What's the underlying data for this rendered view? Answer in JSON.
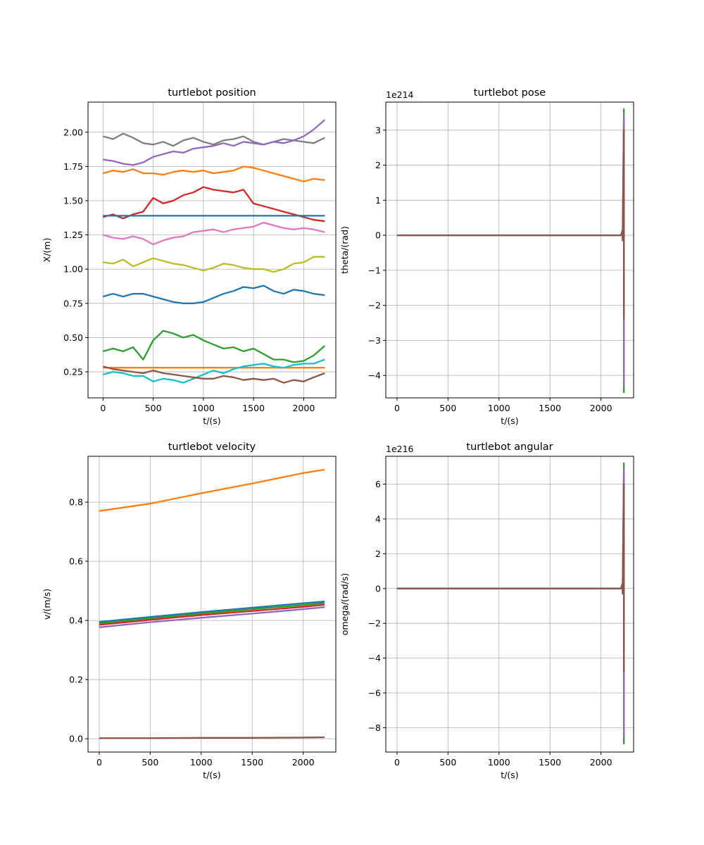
{
  "chart_data": [
    {
      "type": "line",
      "title": "turtlebot position",
      "xlabel": "t/(s)",
      "ylabel": "X/(m)",
      "xlim": [
        -150,
        2320
      ],
      "ylim": [
        0.06,
        2.22
      ],
      "xticks": [
        0,
        500,
        1000,
        1500,
        2000
      ],
      "yticks": [
        0.25,
        0.5,
        0.75,
        1.0,
        1.25,
        1.5,
        1.75,
        2.0
      ],
      "ytick_labels": [
        "0.25",
        "0.50",
        "0.75",
        "1.00",
        "1.25",
        "1.50",
        "1.75",
        "2.00"
      ],
      "grid": true,
      "x": [
        0,
        100,
        200,
        300,
        400,
        500,
        600,
        700,
        800,
        900,
        1000,
        1100,
        1200,
        1300,
        1400,
        1500,
        1600,
        1700,
        1800,
        1900,
        2000,
        2100,
        2210
      ],
      "series": [
        {
          "color": "#7f7f7f",
          "values": [
            1.97,
            1.95,
            1.99,
            1.96,
            1.92,
            1.91,
            1.93,
            1.9,
            1.94,
            1.96,
            1.93,
            1.91,
            1.94,
            1.95,
            1.97,
            1.93,
            1.91,
            1.93,
            1.95,
            1.94,
            1.93,
            1.92,
            1.96
          ]
        },
        {
          "color": "#9467bd",
          "values": [
            1.8,
            1.79,
            1.77,
            1.76,
            1.78,
            1.82,
            1.84,
            1.86,
            1.85,
            1.88,
            1.89,
            1.9,
            1.92,
            1.9,
            1.93,
            1.92,
            1.91,
            1.93,
            1.92,
            1.94,
            1.97,
            2.02,
            2.09
          ]
        },
        {
          "color": "#ff7f0e",
          "values": [
            1.7,
            1.72,
            1.71,
            1.73,
            1.7,
            1.7,
            1.69,
            1.71,
            1.72,
            1.71,
            1.72,
            1.7,
            1.71,
            1.72,
            1.75,
            1.74,
            1.72,
            1.7,
            1.68,
            1.66,
            1.64,
            1.66,
            1.65
          ]
        },
        {
          "color": "#d62728",
          "values": [
            1.38,
            1.4,
            1.37,
            1.4,
            1.42,
            1.52,
            1.48,
            1.5,
            1.54,
            1.56,
            1.6,
            1.58,
            1.57,
            1.56,
            1.58,
            1.48,
            1.46,
            1.44,
            1.42,
            1.4,
            1.38,
            1.36,
            1.35
          ]
        },
        {
          "color": "#1f77b4",
          "values": [
            1.39,
            1.39,
            1.39,
            1.39,
            1.39,
            1.39,
            1.39,
            1.39,
            1.39,
            1.39,
            1.39,
            1.39,
            1.39,
            1.39,
            1.39,
            1.39,
            1.39,
            1.39,
            1.39,
            1.39,
            1.39,
            1.39,
            1.39
          ]
        },
        {
          "color": "#e377c2",
          "values": [
            1.25,
            1.23,
            1.22,
            1.24,
            1.22,
            1.18,
            1.21,
            1.23,
            1.24,
            1.27,
            1.28,
            1.29,
            1.27,
            1.29,
            1.3,
            1.31,
            1.34,
            1.32,
            1.3,
            1.29,
            1.3,
            1.29,
            1.27
          ]
        },
        {
          "color": "#bcbd22",
          "values": [
            1.05,
            1.04,
            1.07,
            1.02,
            1.05,
            1.08,
            1.06,
            1.04,
            1.03,
            1.01,
            0.99,
            1.01,
            1.04,
            1.03,
            1.01,
            1.0,
            1.0,
            0.98,
            1.0,
            1.04,
            1.05,
            1.09,
            1.09
          ]
        },
        {
          "color": "#1f77b4",
          "values": [
            0.8,
            0.82,
            0.8,
            0.82,
            0.82,
            0.8,
            0.78,
            0.76,
            0.75,
            0.75,
            0.76,
            0.79,
            0.82,
            0.84,
            0.87,
            0.86,
            0.88,
            0.84,
            0.82,
            0.85,
            0.84,
            0.82,
            0.81
          ]
        },
        {
          "color": "#2ca02c",
          "values": [
            0.4,
            0.42,
            0.4,
            0.43,
            0.34,
            0.48,
            0.55,
            0.53,
            0.5,
            0.52,
            0.48,
            0.45,
            0.42,
            0.43,
            0.4,
            0.42,
            0.38,
            0.34,
            0.34,
            0.32,
            0.33,
            0.37,
            0.44
          ]
        },
        {
          "color": "#ff7f0e",
          "values": [
            0.28,
            0.28,
            0.28,
            0.28,
            0.28,
            0.28,
            0.28,
            0.28,
            0.28,
            0.28,
            0.28,
            0.28,
            0.28,
            0.28,
            0.28,
            0.28,
            0.28,
            0.28,
            0.28,
            0.28,
            0.28,
            0.28,
            0.28
          ]
        },
        {
          "color": "#17becf",
          "values": [
            0.23,
            0.25,
            0.24,
            0.22,
            0.22,
            0.18,
            0.2,
            0.19,
            0.17,
            0.2,
            0.23,
            0.26,
            0.24,
            0.27,
            0.29,
            0.3,
            0.31,
            0.29,
            0.28,
            0.3,
            0.31,
            0.31,
            0.34
          ]
        },
        {
          "color": "#8c564b",
          "values": [
            0.29,
            0.27,
            0.26,
            0.25,
            0.24,
            0.26,
            0.24,
            0.23,
            0.22,
            0.21,
            0.2,
            0.2,
            0.22,
            0.21,
            0.19,
            0.2,
            0.19,
            0.2,
            0.17,
            0.19,
            0.18,
            0.21,
            0.24
          ]
        }
      ]
    },
    {
      "type": "line",
      "title": "turtlebot pose",
      "xlabel": "t/(s)",
      "ylabel": "theta/(rad)",
      "offset_text": "1e214",
      "xlim": [
        -110,
        2320
      ],
      "ylim": [
        -4.64,
        3.8
      ],
      "xticks": [
        0,
        500,
        1000,
        1500,
        2000
      ],
      "yticks": [
        -4,
        -3,
        -2,
        -1,
        0,
        1,
        2,
        3
      ],
      "ytick_labels": [
        "−4",
        "−3",
        "−2",
        "−1",
        "0",
        "1",
        "2",
        "3"
      ],
      "grid": true,
      "series": [
        {
          "color": "#2ca02c",
          "x": [
            0,
            2195,
            2212,
            2212,
            2225,
            2225
          ],
          "values": [
            0,
            0,
            0.1,
            -0.1,
            3.6,
            -4.5
          ]
        },
        {
          "color": "#9467bd",
          "x": [
            0,
            2195,
            2212,
            2212,
            2225,
            2225
          ],
          "values": [
            0,
            0,
            0.1,
            -0.1,
            3.45,
            -4.3
          ]
        },
        {
          "color": "#8c564b",
          "x": [
            0,
            2195,
            2212,
            2212,
            2225,
            2225
          ],
          "values": [
            0,
            0,
            0.15,
            -0.15,
            3.0,
            -2.4
          ]
        }
      ]
    },
    {
      "type": "line",
      "title": "turtlebot velocity",
      "xlabel": "t/(s)",
      "ylabel": "v/(m/s)",
      "xlim": [
        -110,
        2320
      ],
      "ylim": [
        -0.045,
        0.955
      ],
      "xticks": [
        0,
        500,
        1000,
        1500,
        2000
      ],
      "yticks": [
        0.0,
        0.2,
        0.4,
        0.6,
        0.8
      ],
      "ytick_labels": [
        "0.0",
        "0.2",
        "0.4",
        "0.6",
        "0.8"
      ],
      "grid": true,
      "x": [
        0,
        500,
        1000,
        1500,
        2000,
        2210
      ],
      "series": [
        {
          "color": "#ff7f0e",
          "values": [
            0.77,
            0.795,
            0.83,
            0.863,
            0.898,
            0.91
          ]
        },
        {
          "color": "#1f77b4",
          "values": [
            0.395,
            0.412,
            0.428,
            0.443,
            0.458,
            0.464
          ]
        },
        {
          "color": "#2ca02c",
          "values": [
            0.39,
            0.407,
            0.423,
            0.438,
            0.452,
            0.459
          ]
        },
        {
          "color": "#d62728",
          "values": [
            0.385,
            0.402,
            0.418,
            0.432,
            0.446,
            0.453
          ]
        },
        {
          "color": "#9467bd",
          "values": [
            0.377,
            0.394,
            0.409,
            0.423,
            0.438,
            0.445
          ]
        },
        {
          "color": "#8c564b",
          "values": [
            0.002,
            0.002,
            0.003,
            0.003,
            0.004,
            0.005
          ]
        }
      ]
    },
    {
      "type": "line",
      "title": "turtlebot angular",
      "xlabel": "t/(s)",
      "ylabel": "omega/(rad/s)",
      "offset_text": "1e216",
      "xlim": [
        -110,
        2320
      ],
      "ylim": [
        -9.4,
        7.6
      ],
      "xticks": [
        0,
        500,
        1000,
        1500,
        2000
      ],
      "yticks": [
        -8,
        -6,
        -4,
        -2,
        0,
        2,
        4,
        6
      ],
      "ytick_labels": [
        "−8",
        "−6",
        "−4",
        "−2",
        "0",
        "2",
        "4",
        "6"
      ],
      "grid": true,
      "series": [
        {
          "color": "#2ca02c",
          "x": [
            0,
            2195,
            2212,
            2212,
            2225,
            2225
          ],
          "values": [
            0,
            0,
            0.2,
            -0.2,
            7.2,
            -8.95
          ]
        },
        {
          "color": "#9467bd",
          "x": [
            0,
            2195,
            2212,
            2212,
            2225,
            2225
          ],
          "values": [
            0,
            0,
            0.2,
            -0.2,
            6.9,
            -8.6
          ]
        },
        {
          "color": "#8c564b",
          "x": [
            0,
            2195,
            2212,
            2212,
            2225,
            2225
          ],
          "values": [
            0,
            0,
            0.3,
            -0.3,
            6.0,
            -4.8
          ]
        }
      ]
    }
  ]
}
